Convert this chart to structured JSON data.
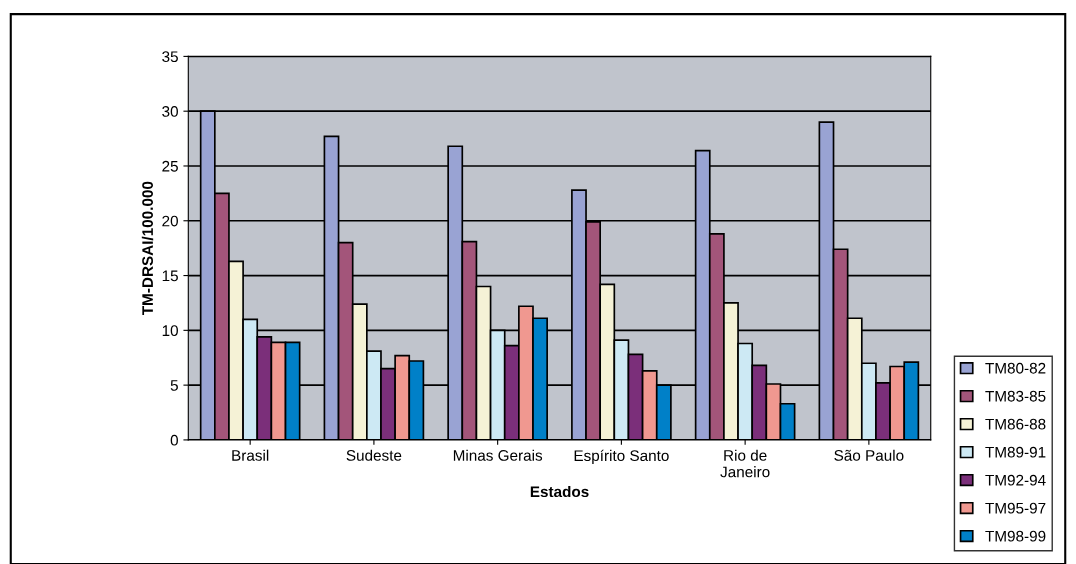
{
  "chart_data": {
    "type": "bar",
    "xlabel": "Estados",
    "ylabel": "TM-DRSAI/100.000",
    "categories": [
      "Brasil",
      "Sudeste",
      "Minas Gerais",
      "Espírito Santo",
      "Rio de\nJaneiro",
      "São Paulo"
    ],
    "series": [
      {
        "name": "TM80-82",
        "color": "#99a3d3",
        "values": [
          30,
          27.7,
          26.8,
          22.8,
          26.4,
          29
        ]
      },
      {
        "name": "TM83-85",
        "color": "#a3557a",
        "values": [
          22.5,
          18,
          18.1,
          19.9,
          18.8,
          17.4
        ]
      },
      {
        "name": "TM86-88",
        "color": "#f5f2d6",
        "values": [
          16.3,
          12.4,
          14,
          14.2,
          12.5,
          11.1
        ]
      },
      {
        "name": "TM89-91",
        "color": "#cde9f4",
        "values": [
          11,
          8.1,
          10,
          9.1,
          8.8,
          7
        ]
      },
      {
        "name": "TM92-94",
        "color": "#7b2f7a",
        "values": [
          9.4,
          6.5,
          8.6,
          7.8,
          6.8,
          5.2
        ]
      },
      {
        "name": "TM95-97",
        "color": "#f09890",
        "values": [
          8.9,
          7.7,
          12.2,
          6.3,
          5.1,
          6.7
        ]
      },
      {
        "name": "TM98-99",
        "color": "#0080c8",
        "values": [
          8.9,
          7.2,
          11.1,
          5,
          3.3,
          7.1
        ]
      }
    ],
    "ylim": [
      0,
      35
    ],
    "yticks": [
      0,
      5,
      10,
      15,
      20,
      25,
      30,
      35
    ],
    "grid": "y",
    "legend": "right"
  }
}
